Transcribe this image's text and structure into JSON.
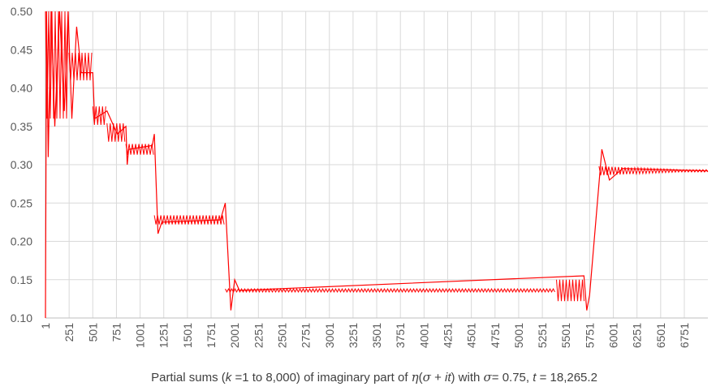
{
  "chart_data": {
    "type": "line",
    "title": "",
    "xlabel": {
      "prefix": "Partial sums (",
      "var_k": "k",
      "range": " =1 to 8,000) of imaginary part of ",
      "eta": "η",
      "open": "(",
      "sigma": "σ",
      "plus": " + ",
      "it": "it",
      "close": ") with ",
      "sigma2": "σ",
      "sigma_val": "= 0.75, ",
      "t": "t",
      "t_val": " = 18,265.2"
    },
    "ylabel": "",
    "xlim": [
      1,
      7000
    ],
    "ylim": [
      0.1,
      0.5
    ],
    "y_ticks": [
      "0.10",
      "0.15",
      "0.20",
      "0.25",
      "0.30",
      "0.35",
      "0.40",
      "0.45",
      "0.50"
    ],
    "x_ticks": [
      "1",
      "251",
      "501",
      "751",
      "1001",
      "1251",
      "1501",
      "1751",
      "2001",
      "2251",
      "2501",
      "2751",
      "3001",
      "3251",
      "3501",
      "3751",
      "4001",
      "4251",
      "4501",
      "4751",
      "5001",
      "5251",
      "5501",
      "5751",
      "6001",
      "6251",
      "6501",
      "6751"
    ],
    "grid": true,
    "series_color": "#ff0000",
    "series": [
      {
        "levels": [
          {
            "x_start": 1,
            "x_end": 250,
            "y": 0.43,
            "amp": 0.07
          },
          {
            "x_start": 250,
            "x_end": 501,
            "y": 0.428,
            "amp": 0.018
          },
          {
            "x_start": 501,
            "x_end": 651,
            "y": 0.364,
            "amp": 0.012
          },
          {
            "x_start": 651,
            "x_end": 851,
            "y": 0.342,
            "amp": 0.012
          },
          {
            "x_start": 851,
            "x_end": 1151,
            "y": 0.32,
            "amp": 0.007
          },
          {
            "x_start": 1151,
            "x_end": 1901,
            "y": 0.228,
            "amp": 0.006
          },
          {
            "x_start": 1901,
            "x_end": 5400,
            "y": 0.136,
            "amp": 0.002
          },
          {
            "x_start": 5400,
            "x_end": 5700,
            "y": 0.136,
            "amp": 0.014
          },
          {
            "x_start": 5850,
            "x_end": 7000,
            "y": 0.292,
            "amp": 0.006
          }
        ],
        "points": [
          [
            1,
            0.1
          ],
          [
            12,
            0.5
          ],
          [
            30,
            0.31
          ],
          [
            60,
            0.5
          ],
          [
            100,
            0.35
          ],
          [
            150,
            0.5
          ],
          [
            200,
            0.37
          ],
          [
            240,
            0.5
          ],
          [
            280,
            0.36
          ],
          [
            330,
            0.48
          ],
          [
            380,
            0.42
          ],
          [
            501,
            0.42
          ],
          [
            520,
            0.36
          ],
          [
            651,
            0.37
          ],
          [
            760,
            0.34
          ],
          [
            851,
            0.35
          ],
          [
            865,
            0.3
          ],
          [
            880,
            0.32
          ],
          [
            1130,
            0.325
          ],
          [
            1151,
            0.34
          ],
          [
            1190,
            0.21
          ],
          [
            1230,
            0.225
          ],
          [
            1850,
            0.228
          ],
          [
            1901,
            0.25
          ],
          [
            1960,
            0.11
          ],
          [
            2000,
            0.15
          ],
          [
            2050,
            0.136
          ],
          [
            5690,
            0.155
          ],
          [
            5720,
            0.11
          ],
          [
            5750,
            0.13
          ],
          [
            5880,
            0.32
          ],
          [
            5960,
            0.28
          ],
          [
            6100,
            0.295
          ],
          [
            7000,
            0.292
          ]
        ]
      }
    ]
  }
}
